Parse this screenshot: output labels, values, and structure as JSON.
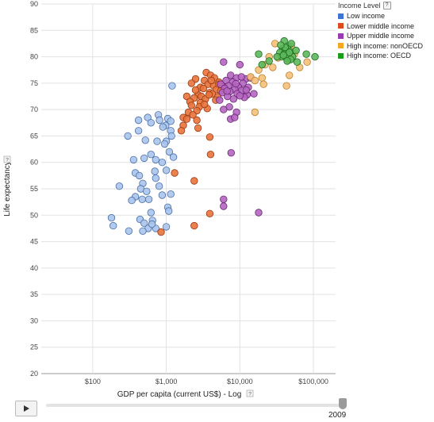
{
  "chart_data": {
    "type": "scatter",
    "xlabel": "GDP per capita (current US$) - Log",
    "ylabel": "Life expectancy",
    "x_scale": "log",
    "xlim": [
      20,
      200000
    ],
    "ylim": [
      20,
      90
    ],
    "x_ticks": [
      100,
      1000,
      10000,
      100000
    ],
    "x_tick_labels": [
      "$100",
      "$1,000",
      "$10,000",
      "$100,000"
    ],
    "y_ticks": [
      20,
      25,
      30,
      35,
      40,
      45,
      50,
      55,
      60,
      65,
      70,
      75,
      80,
      85,
      90
    ],
    "grid": true,
    "legend_position": "top-right",
    "legend_title": "Income Level",
    "help_glyph": "?",
    "year": "2009",
    "series": [
      {
        "name": "Low income",
        "color": "#a8c4ec",
        "stroke": "#4a6fa5",
        "points": [
          [
            1200,
            74.5
          ],
          [
            780,
            69
          ],
          [
            560,
            68.5
          ],
          [
            420,
            68
          ],
          [
            620,
            67.5
          ],
          [
            980,
            67
          ],
          [
            1150,
            66
          ],
          [
            420,
            66
          ],
          [
            300,
            65
          ],
          [
            520,
            64.2
          ],
          [
            750,
            64
          ],
          [
            1180,
            65
          ],
          [
            1000,
            64
          ],
          [
            950,
            63.5
          ],
          [
            1100,
            62
          ],
          [
            620,
            61.5
          ],
          [
            720,
            60.5
          ],
          [
            1250,
            61
          ],
          [
            500,
            60.8
          ],
          [
            360,
            60.5
          ],
          [
            880,
            60
          ],
          [
            1000,
            58.5
          ],
          [
            380,
            58
          ],
          [
            430,
            57.5
          ],
          [
            720,
            57
          ],
          [
            480,
            56
          ],
          [
            800,
            55.5
          ],
          [
            230,
            55.5
          ],
          [
            450,
            55
          ],
          [
            1150,
            54
          ],
          [
            380,
            53.5
          ],
          [
            470,
            53
          ],
          [
            580,
            53
          ],
          [
            340,
            52.8
          ],
          [
            1050,
            51.5
          ],
          [
            620,
            50.5
          ],
          [
            180,
            49.5
          ],
          [
            440,
            49.2
          ],
          [
            650,
            49
          ],
          [
            500,
            48.5
          ],
          [
            190,
            48
          ],
          [
            1000,
            47.8
          ],
          [
            570,
            47.5
          ],
          [
            310,
            47
          ],
          [
            480,
            47
          ],
          [
            720,
            47.5
          ],
          [
            810,
            68
          ],
          [
            1050,
            68.3
          ],
          [
            900,
            66.7
          ],
          [
            1150,
            67.8
          ],
          [
            700,
            58.3
          ],
          [
            540,
            54.5
          ],
          [
            880,
            53.8
          ],
          [
            640,
            48.3
          ],
          [
            1080,
            50.8
          ]
        ]
      },
      {
        "name": "Lower middle income",
        "color": "#e8733c",
        "stroke": "#9a3a12",
        "points": [
          [
            3500,
            77
          ],
          [
            4000,
            76.5
          ],
          [
            4500,
            76
          ],
          [
            2500,
            75.8
          ],
          [
            3300,
            75.5
          ],
          [
            5200,
            75.2
          ],
          [
            2200,
            75
          ],
          [
            3700,
            74.8
          ],
          [
            4400,
            74.5
          ],
          [
            6000,
            74.3
          ],
          [
            2900,
            74.2
          ],
          [
            3200,
            74
          ],
          [
            4800,
            73.8
          ],
          [
            5500,
            73.5
          ],
          [
            3900,
            73.2
          ],
          [
            4200,
            73
          ],
          [
            2700,
            72.8
          ],
          [
            3000,
            72.5
          ],
          [
            5000,
            72.4
          ],
          [
            1900,
            72.5
          ],
          [
            2400,
            72.2
          ],
          [
            3400,
            72
          ],
          [
            4700,
            71.8
          ],
          [
            2100,
            71.5
          ],
          [
            2900,
            71.3
          ],
          [
            2200,
            70.8
          ],
          [
            2800,
            70.5
          ],
          [
            3600,
            70.2
          ],
          [
            2600,
            69.8
          ],
          [
            2000,
            69.5
          ],
          [
            2300,
            69
          ],
          [
            1700,
            68.5
          ],
          [
            1900,
            68.2
          ],
          [
            2600,
            68
          ],
          [
            1700,
            67
          ],
          [
            1600,
            66
          ],
          [
            2700,
            66.5
          ],
          [
            3900,
            64.8
          ],
          [
            4000,
            61.5
          ],
          [
            1300,
            58
          ],
          [
            2400,
            56.5
          ],
          [
            3900,
            50.3
          ],
          [
            2400,
            48
          ],
          [
            850,
            46.8
          ],
          [
            3300,
            71
          ],
          [
            4100,
            75.5
          ],
          [
            2500,
            73.7
          ],
          [
            3800,
            72.8
          ],
          [
            5200,
            74.8
          ]
        ]
      },
      {
        "name": "Upper middle income",
        "color": "#b565c0",
        "stroke": "#6a2775",
        "points": [
          [
            6000,
            79
          ],
          [
            10000,
            78.5
          ],
          [
            7500,
            76.5
          ],
          [
            9000,
            76
          ],
          [
            12000,
            75.8
          ],
          [
            6500,
            75.5
          ],
          [
            8000,
            75.2
          ],
          [
            11000,
            75
          ],
          [
            5500,
            74.8
          ],
          [
            7000,
            74.5
          ],
          [
            9500,
            74.3
          ],
          [
            13000,
            74.2
          ],
          [
            6200,
            74
          ],
          [
            8500,
            73.8
          ],
          [
            10500,
            73.6
          ],
          [
            7300,
            73.4
          ],
          [
            5800,
            73.2
          ],
          [
            9200,
            73
          ],
          [
            12500,
            72.8
          ],
          [
            6800,
            72.5
          ],
          [
            11500,
            72.3
          ],
          [
            8200,
            72
          ],
          [
            5300,
            71.8
          ],
          [
            15500,
            73
          ],
          [
            7200,
            70.5
          ],
          [
            6000,
            70
          ],
          [
            9000,
            69.5
          ],
          [
            7500,
            68.2
          ],
          [
            8500,
            68.5
          ],
          [
            7600,
            61.8
          ],
          [
            6000,
            53
          ],
          [
            6000,
            51.7
          ],
          [
            18000,
            50.5
          ],
          [
            10500,
            76.2
          ],
          [
            14000,
            76
          ],
          [
            8800,
            74.9
          ],
          [
            12200,
            73.7
          ],
          [
            6700,
            73.5
          ],
          [
            10000,
            72.6
          ]
        ]
      },
      {
        "name": "High income: nonOECD",
        "color": "#f5c07a",
        "stroke": "#b8802b",
        "points": [
          [
            30000,
            82.5
          ],
          [
            50000,
            82
          ],
          [
            38000,
            81.5
          ],
          [
            25000,
            80
          ],
          [
            45000,
            79.5
          ],
          [
            22000,
            78.5
          ],
          [
            65000,
            78
          ],
          [
            82000,
            79
          ],
          [
            28000,
            78
          ],
          [
            18000,
            77.5
          ],
          [
            20000,
            76
          ],
          [
            14000,
            76.2
          ],
          [
            16000,
            75.5
          ],
          [
            21000,
            74.8
          ],
          [
            16000,
            69.5
          ],
          [
            43000,
            74.5
          ],
          [
            55000,
            80.5
          ],
          [
            33000,
            79.8
          ],
          [
            47000,
            76.5
          ]
        ]
      },
      {
        "name": "High income: OECD",
        "color": "#5cb85c",
        "stroke": "#1f6b1f",
        "points": [
          [
            40000,
            83
          ],
          [
            45000,
            82
          ],
          [
            38000,
            81.5
          ],
          [
            42000,
            81
          ],
          [
            48000,
            81
          ],
          [
            35000,
            80.8
          ],
          [
            44000,
            80.5
          ],
          [
            40000,
            80.5
          ],
          [
            46000,
            80.2
          ],
          [
            52000,
            80
          ],
          [
            37000,
            80
          ],
          [
            43000,
            79.8
          ],
          [
            49000,
            79.5
          ],
          [
            105000,
            80
          ],
          [
            80000,
            80.5
          ],
          [
            58000,
            81.2
          ],
          [
            18000,
            80.5
          ],
          [
            25000,
            79.2
          ],
          [
            20000,
            78.5
          ],
          [
            32000,
            80
          ],
          [
            60000,
            79
          ],
          [
            41000,
            81.8
          ],
          [
            36000,
            82.2
          ],
          [
            50000,
            82.5
          ],
          [
            47000,
            80.8
          ],
          [
            39000,
            80.3
          ],
          [
            44000,
            79.2
          ]
        ]
      }
    ]
  }
}
